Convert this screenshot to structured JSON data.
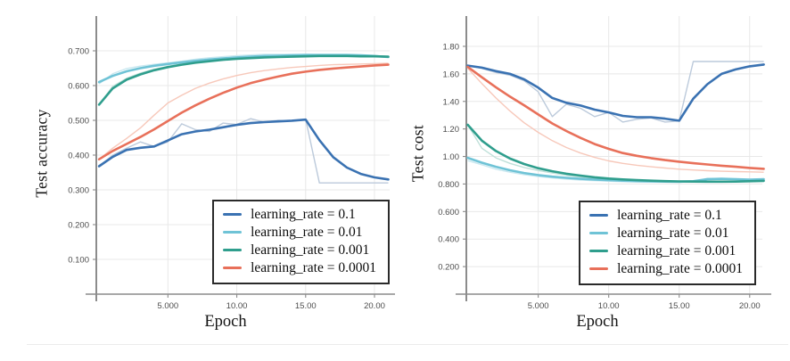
{
  "figure": {
    "background": "#ffffff",
    "divider_color": "#ececec"
  },
  "colors": {
    "grid": "#e8e8e8",
    "axis": "#8c8c8c",
    "tick_label": "#4c4c4c",
    "text": "#141414",
    "legend_border": "#2a2a2a",
    "legend_bg": "#ffffff"
  },
  "chart_data": [
    {
      "type": "line",
      "title": "",
      "xlabel": "Epoch",
      "ylabel": "Test accuracy",
      "xlim": [
        -0.2,
        21.1
      ],
      "ylim": [
        0,
        0.8
      ],
      "grid": true,
      "legend_position": "lower right",
      "xticks": [
        {
          "v": 5,
          "label": "5.000"
        },
        {
          "v": 10,
          "label": "10.00"
        },
        {
          "v": 15,
          "label": "15.00"
        },
        {
          "v": 20,
          "label": "20.00"
        }
      ],
      "yticks": [
        {
          "v": 0.1,
          "label": "0.100"
        },
        {
          "v": 0.2,
          "label": "0.200"
        },
        {
          "v": 0.3,
          "label": "0.300"
        },
        {
          "v": 0.4,
          "label": "0.400"
        },
        {
          "v": 0.5,
          "label": "0.500"
        },
        {
          "v": 0.6,
          "label": "0.600"
        },
        {
          "v": 0.7,
          "label": "0.700"
        }
      ],
      "x": [
        0,
        1,
        2,
        3,
        4,
        5,
        6,
        7,
        8,
        9,
        10,
        11,
        12,
        13,
        14,
        15,
        16,
        17,
        18,
        19,
        20,
        21
      ],
      "series": [
        {
          "name": "learning_rate = 0.1",
          "color": "#3a72b2",
          "raw_color": "#bccadb",
          "values": [
            0.368,
            0.395,
            0.415,
            0.421,
            0.425,
            0.442,
            0.46,
            0.468,
            0.473,
            0.48,
            0.487,
            0.492,
            0.495,
            0.497,
            0.499,
            0.502,
            0.443,
            0.394,
            0.364,
            0.346,
            0.336,
            0.33
          ],
          "raw_values": [
            0.368,
            0.4,
            0.42,
            0.438,
            0.425,
            0.438,
            0.49,
            0.473,
            0.468,
            0.492,
            0.488,
            0.505,
            0.495,
            0.5,
            0.498,
            0.503,
            0.32,
            0.32,
            0.32,
            0.32,
            0.32,
            0.32
          ]
        },
        {
          "name": "learning_rate = 0.01",
          "color": "#6fc3d6",
          "raw_color": "#c9e8f0",
          "values": [
            0.61,
            0.628,
            0.641,
            0.65,
            0.657,
            0.662,
            0.667,
            0.671,
            0.675,
            0.678,
            0.681,
            0.683,
            0.685,
            0.686,
            0.687,
            0.688,
            0.688,
            0.688,
            0.688,
            0.687,
            0.685,
            0.682
          ],
          "raw_values": [
            0.605,
            0.634,
            0.649,
            0.656,
            0.661,
            0.665,
            0.67,
            0.676,
            0.68,
            0.683,
            0.686,
            0.688,
            0.69,
            0.69,
            0.69,
            0.69,
            0.689,
            0.689,
            0.688,
            0.687,
            0.684,
            0.681
          ]
        },
        {
          "name": "learning_rate = 0.001",
          "color": "#2f9e8d",
          "raw_color": "#bfe0d9",
          "values": [
            0.545,
            0.592,
            0.617,
            0.632,
            0.644,
            0.653,
            0.66,
            0.666,
            0.67,
            0.674,
            0.677,
            0.679,
            0.681,
            0.682,
            0.683,
            0.684,
            0.685,
            0.685,
            0.685,
            0.684,
            0.684,
            0.683
          ],
          "raw_values": [
            0.545,
            0.598,
            0.621,
            0.636,
            0.647,
            0.655,
            0.662,
            0.668,
            0.672,
            0.676,
            0.679,
            0.681,
            0.683,
            0.684,
            0.685,
            0.686,
            0.686,
            0.686,
            0.685,
            0.685,
            0.684,
            0.683
          ]
        },
        {
          "name": "learning_rate = 0.0001",
          "color": "#e8705a",
          "raw_color": "#f7c8ba",
          "values": [
            0.388,
            0.412,
            0.432,
            0.452,
            0.474,
            0.498,
            0.522,
            0.543,
            0.562,
            0.579,
            0.594,
            0.607,
            0.617,
            0.626,
            0.634,
            0.64,
            0.645,
            0.649,
            0.652,
            0.655,
            0.658,
            0.66
          ],
          "raw_values": [
            0.388,
            0.42,
            0.448,
            0.478,
            0.515,
            0.55,
            0.572,
            0.592,
            0.607,
            0.619,
            0.629,
            0.637,
            0.643,
            0.648,
            0.652,
            0.655,
            0.658,
            0.66,
            0.661,
            0.662,
            0.663,
            0.664
          ]
        }
      ]
    },
    {
      "type": "line",
      "title": "",
      "xlabel": "Epoch",
      "ylabel": "Test cost",
      "xlim": [
        -0.1,
        20.9
      ],
      "ylim": [
        0,
        2.02
      ],
      "grid": true,
      "legend_position": "lower right",
      "xticks": [
        {
          "v": 5,
          "label": "5.000"
        },
        {
          "v": 10,
          "label": "10.00"
        },
        {
          "v": 15,
          "label": "15.00"
        },
        {
          "v": 20,
          "label": "20.00"
        }
      ],
      "yticks": [
        {
          "v": 0.2,
          "label": "0.200"
        },
        {
          "v": 0.4,
          "label": "0.400"
        },
        {
          "v": 0.6,
          "label": "0.600"
        },
        {
          "v": 0.8,
          "label": "0.800"
        },
        {
          "v": 1.0,
          "label": "1.00"
        },
        {
          "v": 1.2,
          "label": "1.20"
        },
        {
          "v": 1.4,
          "label": "1.40"
        },
        {
          "v": 1.6,
          "label": "1.60"
        },
        {
          "v": 1.8,
          "label": "1.80"
        }
      ],
      "x": [
        0,
        1,
        2,
        3,
        4,
        5,
        6,
        7,
        8,
        9,
        10,
        11,
        12,
        13,
        14,
        15,
        16,
        17,
        18,
        19,
        20,
        21
      ],
      "series": [
        {
          "name": "learning_rate = 0.1",
          "color": "#3a72b2",
          "raw_color": "#bccadb",
          "values": [
            1.66,
            1.645,
            1.62,
            1.6,
            1.56,
            1.5,
            1.425,
            1.39,
            1.37,
            1.34,
            1.32,
            1.295,
            1.285,
            1.285,
            1.275,
            1.26,
            1.42,
            1.525,
            1.6,
            1.632,
            1.655,
            1.668
          ],
          "raw_values": [
            1.66,
            1.64,
            1.61,
            1.59,
            1.55,
            1.47,
            1.29,
            1.38,
            1.35,
            1.29,
            1.32,
            1.25,
            1.27,
            1.28,
            1.25,
            1.258,
            1.69,
            1.69,
            1.69,
            1.69,
            1.69,
            1.69
          ]
        },
        {
          "name": "learning_rate = 0.01",
          "color": "#6fc3d6",
          "raw_color": "#c9e8f0",
          "values": [
            0.99,
            0.955,
            0.925,
            0.9,
            0.88,
            0.865,
            0.853,
            0.845,
            0.838,
            0.832,
            0.828,
            0.824,
            0.821,
            0.819,
            0.818,
            0.817,
            0.82,
            0.835,
            0.838,
            0.835,
            0.832,
            0.835
          ],
          "raw_values": [
            0.97,
            0.94,
            0.908,
            0.886,
            0.868,
            0.854,
            0.844,
            0.836,
            0.829,
            0.824,
            0.82,
            0.817,
            0.815,
            0.814,
            0.813,
            0.812,
            0.818,
            0.841,
            0.84,
            0.833,
            0.83,
            0.838
          ]
        },
        {
          "name": "learning_rate = 0.001",
          "color": "#2f9e8d",
          "raw_color": "#bfe0d9",
          "values": [
            1.23,
            1.115,
            1.04,
            0.985,
            0.945,
            0.915,
            0.893,
            0.875,
            0.861,
            0.849,
            0.84,
            0.833,
            0.828,
            0.824,
            0.821,
            0.819,
            0.818,
            0.817,
            0.817,
            0.818,
            0.82,
            0.823
          ],
          "raw_values": [
            1.23,
            1.06,
            0.99,
            0.95,
            0.92,
            0.898,
            0.88,
            0.864,
            0.852,
            0.842,
            0.835,
            0.829,
            0.824,
            0.82,
            0.817,
            0.815,
            0.814,
            0.815,
            0.816,
            0.817,
            0.82,
            0.824
          ]
        },
        {
          "name": "learning_rate = 0.0001",
          "color": "#e8705a",
          "raw_color": "#f7c8ba",
          "values": [
            1.65,
            1.575,
            1.503,
            1.435,
            1.372,
            1.305,
            1.24,
            1.185,
            1.135,
            1.09,
            1.055,
            1.025,
            1.005,
            0.988,
            0.974,
            0.962,
            0.951,
            0.942,
            0.933,
            0.925,
            0.917,
            0.91
          ],
          "raw_values": [
            1.64,
            1.53,
            1.425,
            1.33,
            1.245,
            1.175,
            1.115,
            1.065,
            1.025,
            0.993,
            0.968,
            0.95,
            0.936,
            0.925,
            0.916,
            0.908,
            0.902,
            0.897,
            0.893,
            0.89,
            0.888,
            0.886
          ]
        }
      ]
    }
  ]
}
